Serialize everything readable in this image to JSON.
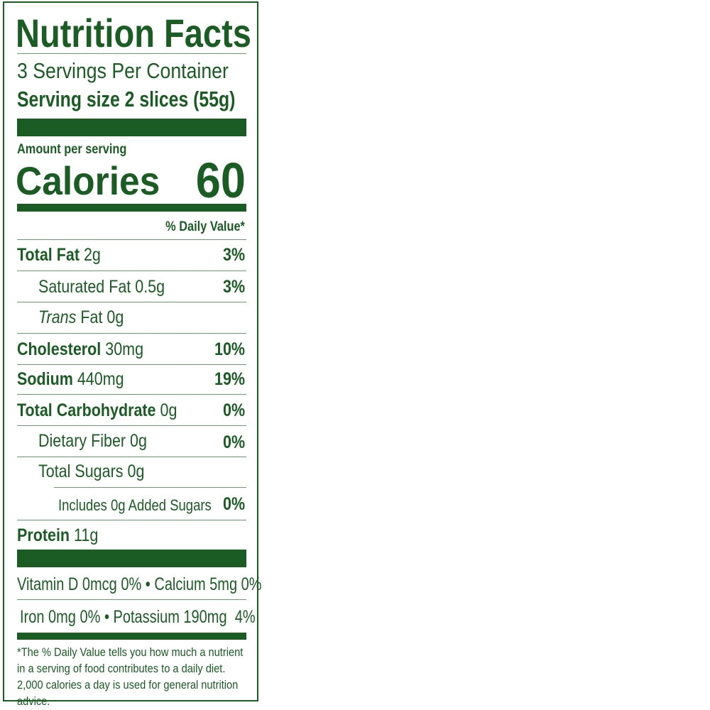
{
  "title": "Nutrition Facts",
  "servings_per_container": "3 Servings Per Container",
  "serving_size_label": "Serving size",
  "serving_size_value": "2 slices (55g)",
  "amount_per_serving": "Amount per serving",
  "calories_label": "Calories",
  "calories_value": "60",
  "daily_value_header": "% Daily Value*",
  "nutrients": [
    {
      "name": "Total Fat",
      "amount": "2g",
      "dv": "3%"
    },
    {
      "name": "Saturated Fat",
      "amount": "0.5g",
      "dv": "3%"
    },
    {
      "name": "Trans",
      "name_rest": "Fat",
      "amount": "0g",
      "dv": ""
    },
    {
      "name": "Cholesterol",
      "amount": "30mg",
      "dv": "10%"
    },
    {
      "name": "Sodium",
      "amount": "440mg",
      "dv": "19%"
    },
    {
      "name": "Total Carbohydrate",
      "amount": "0g",
      "dv": "0%"
    },
    {
      "name": "Dietary Fiber",
      "amount": "0g",
      "dv": "0%"
    },
    {
      "name": "Total Sugars",
      "amount": "0g",
      "dv": ""
    },
    {
      "name": "Includes 0g Added Sugars",
      "amount": "",
      "dv": "0%"
    },
    {
      "name": "Protein",
      "amount": "11g",
      "dv": ""
    }
  ],
  "micronutrients_line1": "Vitamin D 0mcg 0% • Calcium 5mg 0%",
  "micronutrients_line2": "Iron 0mg 0% • Potassium 190mg  4%",
  "footnote": "*The % Daily Value tells you how much a nutrient in a serving of food contributes to a daily diet. 2,000 calories a day is used for general nutrition advice.",
  "colors": {
    "label_green": "#1a5c23"
  }
}
